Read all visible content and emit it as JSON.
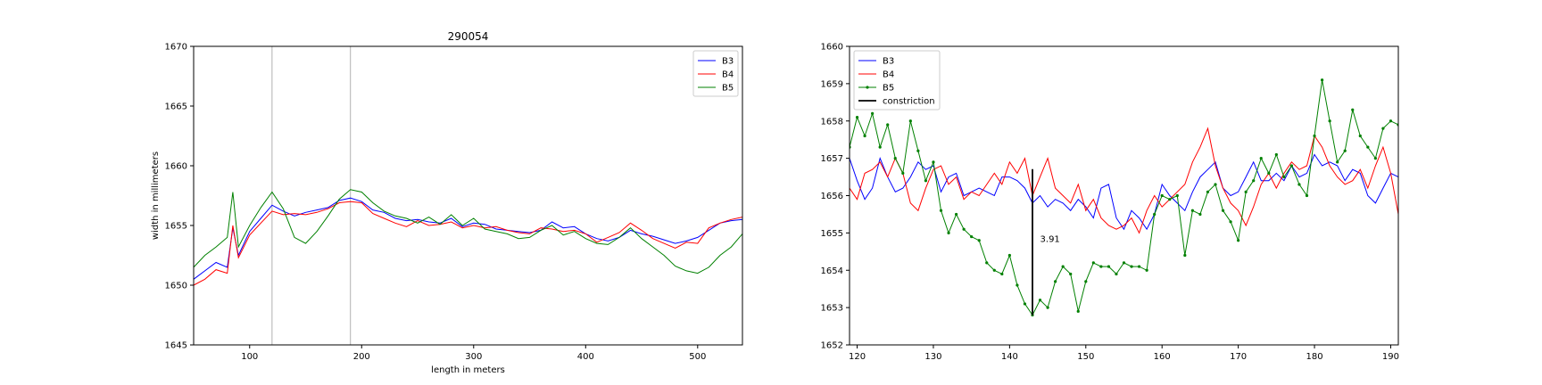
{
  "chart_data": [
    {
      "type": "line",
      "title": "290054",
      "xlabel": "length in meters",
      "ylabel": "width in millimeters",
      "xlim": [
        50,
        540
      ],
      "ylim": [
        1645,
        1670
      ],
      "xticks": [
        100,
        200,
        300,
        400,
        500
      ],
      "yticks": [
        1645,
        1650,
        1655,
        1660,
        1665,
        1670
      ],
      "vlines": [
        120,
        190
      ],
      "legend": "top-right",
      "series": [
        {
          "name": "B3",
          "color": "#0000ff",
          "marker": false,
          "x": [
            50,
            60,
            70,
            80,
            85,
            90,
            100,
            110,
            120,
            130,
            140,
            150,
            160,
            170,
            180,
            190,
            200,
            210,
            220,
            230,
            240,
            250,
            260,
            270,
            280,
            290,
            300,
            310,
            320,
            330,
            340,
            350,
            360,
            370,
            380,
            390,
            400,
            410,
            420,
            430,
            440,
            450,
            460,
            470,
            480,
            490,
            500,
            510,
            520,
            530,
            540
          ],
          "y": [
            1650.5,
            1651.2,
            1651.9,
            1651.5,
            1654.8,
            1652.5,
            1654.5,
            1655.6,
            1656.7,
            1656.2,
            1655.8,
            1656.1,
            1656.3,
            1656.5,
            1657.1,
            1657.3,
            1657.0,
            1656.3,
            1656.1,
            1655.6,
            1655.4,
            1655.5,
            1655.3,
            1655.2,
            1655.6,
            1654.9,
            1655.2,
            1655.1,
            1654.7,
            1654.6,
            1654.5,
            1654.4,
            1654.6,
            1655.3,
            1654.8,
            1654.9,
            1654.3,
            1653.9,
            1653.7,
            1654.0,
            1654.6,
            1654.3,
            1654.1,
            1653.8,
            1653.5,
            1653.7,
            1654.0,
            1654.6,
            1655.2,
            1655.4,
            1655.5
          ]
        },
        {
          "name": "B4",
          "color": "#ff0000",
          "marker": false,
          "x": [
            50,
            60,
            70,
            80,
            85,
            90,
            100,
            110,
            120,
            130,
            140,
            150,
            160,
            170,
            180,
            190,
            200,
            210,
            220,
            230,
            240,
            250,
            260,
            270,
            280,
            290,
            300,
            310,
            320,
            330,
            340,
            350,
            360,
            370,
            380,
            390,
            400,
            410,
            420,
            430,
            440,
            450,
            460,
            470,
            480,
            490,
            500,
            510,
            520,
            530,
            540
          ],
          "y": [
            1650.0,
            1650.5,
            1651.3,
            1651.0,
            1655.0,
            1652.3,
            1654.2,
            1655.2,
            1656.2,
            1655.9,
            1656.0,
            1655.9,
            1656.1,
            1656.4,
            1656.9,
            1657.0,
            1656.9,
            1656.0,
            1655.6,
            1655.2,
            1654.9,
            1655.4,
            1655.0,
            1655.1,
            1655.3,
            1654.8,
            1655.0,
            1654.8,
            1654.9,
            1654.6,
            1654.4,
            1654.3,
            1654.8,
            1654.7,
            1654.5,
            1654.6,
            1654.3,
            1653.6,
            1654.0,
            1654.4,
            1655.2,
            1654.6,
            1653.9,
            1653.5,
            1653.1,
            1653.6,
            1653.5,
            1654.8,
            1655.2,
            1655.5,
            1655.7
          ]
        },
        {
          "name": "B5",
          "color": "#008000",
          "marker": false,
          "x": [
            50,
            60,
            70,
            80,
            85,
            90,
            100,
            110,
            120,
            130,
            140,
            150,
            160,
            170,
            180,
            190,
            200,
            210,
            220,
            230,
            240,
            250,
            260,
            270,
            280,
            290,
            300,
            310,
            320,
            330,
            340,
            350,
            360,
            370,
            380,
            390,
            400,
            410,
            420,
            430,
            440,
            450,
            460,
            470,
            480,
            490,
            500,
            510,
            520,
            530,
            540
          ],
          "y": [
            1651.5,
            1652.5,
            1653.2,
            1654.0,
            1657.8,
            1653.2,
            1655.0,
            1656.5,
            1657.8,
            1656.4,
            1654.0,
            1653.5,
            1654.5,
            1655.8,
            1657.2,
            1658.0,
            1657.8,
            1656.9,
            1656.2,
            1655.8,
            1655.6,
            1655.2,
            1655.7,
            1655.1,
            1655.9,
            1655.0,
            1655.6,
            1654.7,
            1654.5,
            1654.3,
            1653.9,
            1654.0,
            1654.6,
            1655.0,
            1654.2,
            1654.5,
            1653.9,
            1653.5,
            1653.4,
            1654.0,
            1654.8,
            1653.9,
            1653.2,
            1652.5,
            1651.6,
            1651.2,
            1651.0,
            1651.5,
            1652.5,
            1653.2,
            1654.3
          ]
        }
      ]
    },
    {
      "type": "line",
      "title": "",
      "xlabel": "",
      "ylabel": "",
      "xlim": [
        119,
        191
      ],
      "ylim": [
        1652,
        1660
      ],
      "xticks": [
        120,
        130,
        140,
        150,
        160,
        170,
        180,
        190
      ],
      "yticks": [
        1652,
        1653,
        1654,
        1655,
        1656,
        1657,
        1658,
        1659,
        1660
      ],
      "legend": "top-left",
      "annotation": {
        "text": "3.91",
        "x": 144,
        "y": 1654.85
      },
      "constriction": {
        "name": "constriction",
        "x": 143,
        "y": [
          1652.8,
          1656.71
        ]
      },
      "series": [
        {
          "name": "B3",
          "color": "#0000ff",
          "marker": false,
          "x": [
            119,
            120,
            121,
            122,
            123,
            124,
            125,
            126,
            127,
            128,
            129,
            130,
            131,
            132,
            133,
            134,
            135,
            136,
            137,
            138,
            139,
            140,
            141,
            142,
            143,
            144,
            145,
            146,
            147,
            148,
            149,
            150,
            151,
            152,
            153,
            154,
            155,
            156,
            157,
            158,
            159,
            160,
            161,
            162,
            163,
            164,
            165,
            166,
            167,
            168,
            169,
            170,
            171,
            172,
            173,
            174,
            175,
            176,
            177,
            178,
            179,
            180,
            181,
            182,
            183,
            184,
            185,
            186,
            187,
            188,
            189,
            190,
            191
          ],
          "y": [
            1657.0,
            1656.4,
            1655.9,
            1656.2,
            1657.0,
            1656.5,
            1656.1,
            1656.2,
            1656.5,
            1656.9,
            1656.7,
            1656.8,
            1656.1,
            1656.5,
            1656.6,
            1656.0,
            1656.1,
            1656.2,
            1656.1,
            1656.0,
            1656.5,
            1656.5,
            1656.4,
            1656.2,
            1655.8,
            1656.0,
            1655.7,
            1655.9,
            1655.8,
            1655.6,
            1655.9,
            1655.7,
            1655.4,
            1656.2,
            1656.3,
            1655.4,
            1655.1,
            1655.6,
            1655.4,
            1655.1,
            1655.5,
            1656.3,
            1656.0,
            1655.8,
            1655.6,
            1656.1,
            1656.5,
            1656.7,
            1656.9,
            1656.2,
            1656.0,
            1656.1,
            1656.5,
            1656.9,
            1656.4,
            1656.4,
            1656.6,
            1656.4,
            1656.8,
            1656.5,
            1656.6,
            1657.1,
            1656.8,
            1656.9,
            1656.8,
            1656.4,
            1656.7,
            1656.6,
            1656.0,
            1655.8,
            1656.2,
            1656.6,
            1656.5
          ]
        },
        {
          "name": "B4",
          "color": "#ff0000",
          "marker": false,
          "x": [
            119,
            120,
            121,
            122,
            123,
            124,
            125,
            126,
            127,
            128,
            129,
            130,
            131,
            132,
            133,
            134,
            135,
            136,
            137,
            138,
            139,
            140,
            141,
            142,
            143,
            144,
            145,
            146,
            147,
            148,
            149,
            150,
            151,
            152,
            153,
            154,
            155,
            156,
            157,
            158,
            159,
            160,
            161,
            162,
            163,
            164,
            165,
            166,
            167,
            168,
            169,
            170,
            171,
            172,
            173,
            174,
            175,
            176,
            177,
            178,
            179,
            180,
            181,
            182,
            183,
            184,
            185,
            186,
            187,
            188,
            189,
            190,
            191
          ],
          "y": [
            1656.2,
            1655.9,
            1656.6,
            1656.7,
            1656.9,
            1656.5,
            1657.0,
            1656.6,
            1655.8,
            1655.6,
            1656.2,
            1656.7,
            1656.8,
            1656.3,
            1656.5,
            1655.9,
            1656.1,
            1656.0,
            1656.3,
            1656.6,
            1656.3,
            1656.9,
            1656.6,
            1657.0,
            1656.0,
            1656.5,
            1657.0,
            1656.2,
            1656.0,
            1655.8,
            1656.3,
            1655.6,
            1655.9,
            1655.4,
            1655.2,
            1655.1,
            1655.2,
            1655.4,
            1655.0,
            1655.6,
            1656.0,
            1655.7,
            1655.9,
            1656.1,
            1656.3,
            1656.9,
            1657.3,
            1657.8,
            1656.8,
            1656.2,
            1655.8,
            1655.6,
            1655.2,
            1655.7,
            1656.3,
            1656.6,
            1656.2,
            1656.6,
            1656.9,
            1656.7,
            1656.8,
            1657.6,
            1657.3,
            1656.8,
            1656.5,
            1656.3,
            1656.4,
            1656.7,
            1656.2,
            1656.8,
            1657.3,
            1656.6,
            1655.5
          ]
        },
        {
          "name": "B5",
          "color": "#008000",
          "marker": true,
          "x": [
            119,
            120,
            121,
            122,
            123,
            124,
            125,
            126,
            127,
            128,
            129,
            130,
            131,
            132,
            133,
            134,
            135,
            136,
            137,
            138,
            139,
            140,
            141,
            142,
            143,
            144,
            145,
            146,
            147,
            148,
            149,
            150,
            151,
            152,
            153,
            154,
            155,
            156,
            157,
            158,
            159,
            160,
            161,
            162,
            163,
            164,
            165,
            166,
            167,
            168,
            169,
            170,
            171,
            172,
            173,
            174,
            175,
            176,
            177,
            178,
            179,
            180,
            181,
            182,
            183,
            184,
            185,
            186,
            187,
            188,
            189,
            190,
            191
          ],
          "y": [
            1657.3,
            1658.1,
            1657.6,
            1658.2,
            1657.3,
            1657.9,
            1657.0,
            1656.6,
            1658.0,
            1657.2,
            1656.4,
            1656.9,
            1655.6,
            1655.0,
            1655.5,
            1655.1,
            1654.9,
            1654.8,
            1654.2,
            1654.0,
            1653.9,
            1654.4,
            1653.6,
            1653.1,
            1652.8,
            1653.2,
            1653.0,
            1653.7,
            1654.1,
            1653.9,
            1652.9,
            1653.7,
            1654.2,
            1654.1,
            1654.1,
            1653.9,
            1654.2,
            1654.1,
            1654.1,
            1654.0,
            1655.5,
            1656.0,
            1655.9,
            1656.0,
            1654.4,
            1655.6,
            1655.5,
            1656.1,
            1656.3,
            1655.6,
            1655.3,
            1654.8,
            1656.1,
            1656.4,
            1657.0,
            1656.6,
            1657.1,
            1656.5,
            1656.8,
            1656.3,
            1656.0,
            1657.6,
            1659.1,
            1658.0,
            1656.9,
            1657.2,
            1658.3,
            1657.6,
            1657.3,
            1657.0,
            1657.8,
            1658.0,
            1657.9
          ]
        }
      ]
    }
  ]
}
